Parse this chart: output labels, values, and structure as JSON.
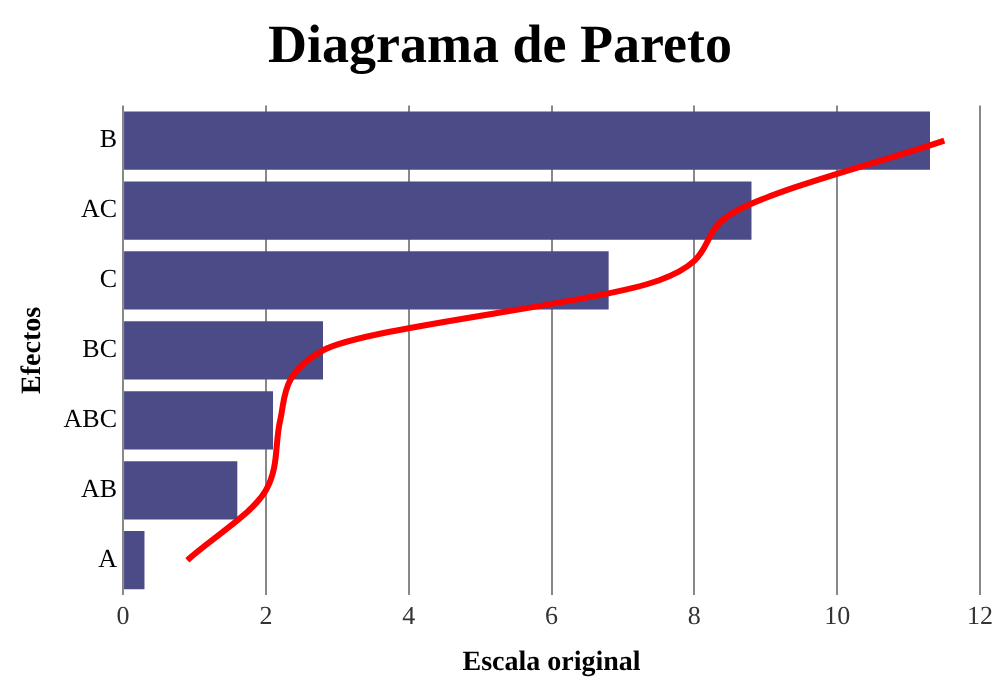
{
  "chart_data": {
    "type": "bar",
    "orientation": "horizontal",
    "title": "Diagrama de Pareto",
    "xlabel": "Escala original",
    "ylabel": "Efectos",
    "categories": [
      "B",
      "AC",
      "C",
      "BC",
      "ABC",
      "AB",
      "A"
    ],
    "series": [
      {
        "color": "#4b4b88",
        "values": [
          11.3,
          8.8,
          6.8,
          2.8,
          2.1,
          1.6,
          0.3
        ]
      },
      {
        "type": "line",
        "color": "#ff0000",
        "values": [
          11.5,
          8.6,
          7.5,
          2.8,
          2.2,
          2.0,
          0.9
        ]
      }
    ],
    "xlim": [
      0,
      12
    ],
    "xticks": [
      0,
      2,
      4,
      6,
      8,
      10,
      12
    ],
    "grid": "x",
    "marker": "none"
  }
}
